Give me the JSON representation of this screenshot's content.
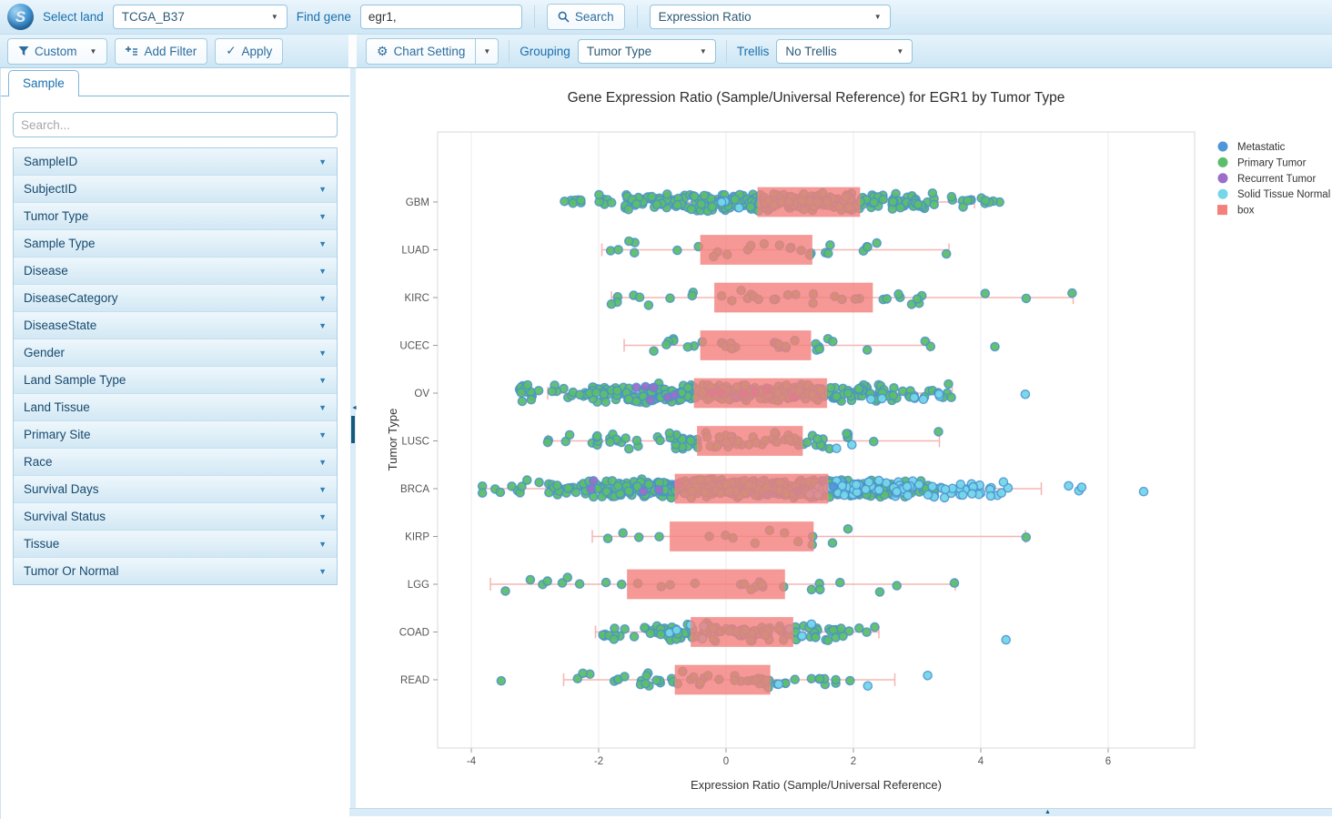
{
  "icons": {
    "dropdown_caret": "▼",
    "collapse_up": "▲",
    "collapse_left": "◄",
    "check": "✓",
    "gear": "⚙"
  },
  "brand": {
    "logo_letter": "S"
  },
  "toolbar": {
    "select_land_label": "Select land",
    "select_land_value": "TCGA_B37",
    "find_gene_label": "Find gene",
    "find_gene_value": "egr1,",
    "search_button": "Search",
    "view_mode_value": "Expression Ratio"
  },
  "filter_toolbar": {
    "custom": "Custom",
    "add_filter": "Add Filter",
    "apply": "Apply"
  },
  "chart_toolbar": {
    "chart_setting": "Chart Setting",
    "grouping_label": "Grouping",
    "grouping_value": "Tumor Type",
    "trellis_label": "Trellis",
    "trellis_value": "No Trellis"
  },
  "sidebar": {
    "tab_label": "Sample",
    "search_placeholder": "Search...",
    "fields": [
      "SampleID",
      "SubjectID",
      "Tumor Type",
      "Sample Type",
      "Disease",
      "DiseaseCategory",
      "DiseaseState",
      "Gender",
      "Land Sample Type",
      "Land Tissue",
      "Primary Site",
      "Race",
      "Survival Days",
      "Survival Status",
      "Tissue",
      "Tumor Or Normal"
    ]
  },
  "chart_data": {
    "type": "box",
    "title": "Gene Expression Ratio (Sample/Universal Reference) for EGR1 by Tumor Type",
    "xlabel": "Expression Ratio (Sample/Universal Reference)",
    "ylabel": "Tumor Type",
    "xlim": [
      -4.5,
      7.35
    ],
    "xticks": [
      -4,
      -2,
      0,
      2,
      4,
      6
    ],
    "grid": true,
    "legend_position": "top-right",
    "categories": [
      "GBM",
      "LUAD",
      "KIRC",
      "UCEC",
      "OV",
      "LUSC",
      "BRCA",
      "KIRP",
      "LGG",
      "COAD",
      "READ"
    ],
    "colors": {
      "metastatic": "#4f97d6",
      "primary": "#5cbe69",
      "recurrent": "#9a6fc9",
      "normal": "#74d6e9",
      "box": "#f4807c",
      "whisker": "#f5b5b2",
      "point_stroke": "#4b90d0"
    },
    "legend": [
      {
        "label": "Metastatic",
        "series": "metastatic",
        "shape": "circle"
      },
      {
        "label": "Primary Tumor",
        "series": "primary",
        "shape": "circle"
      },
      {
        "label": "Recurrent Tumor",
        "series": "recurrent",
        "shape": "circle"
      },
      {
        "label": "Solid Tissue Normal",
        "series": "normal",
        "shape": "circle"
      },
      {
        "label": "box",
        "series": "box",
        "shape": "square"
      }
    ],
    "rows": [
      {
        "label": "GBM",
        "whisker_lo": -1.45,
        "q1": 0.5,
        "q3": 2.1,
        "whisker_hi": 3.9,
        "clusters": [
          [
            "primary",
            -2.6,
            -1.6,
            14
          ],
          [
            "primary",
            -1.6,
            -0.6,
            55
          ],
          [
            "primary",
            -0.6,
            0.5,
            90
          ],
          [
            "primary",
            0.5,
            2.1,
            140
          ],
          [
            "primary",
            2.1,
            3.2,
            50
          ],
          [
            "primary",
            3.2,
            4.35,
            16
          ],
          [
            "normal",
            -0.7,
            0.3,
            3
          ]
        ]
      },
      {
        "label": "LUAD",
        "whisker_lo": -1.95,
        "q1": -0.4,
        "q3": 1.35,
        "whisker_hi": 3.5,
        "clusters": [
          [
            "primary",
            -2.0,
            -0.6,
            6
          ],
          [
            "primary",
            -0.6,
            1.35,
            13
          ],
          [
            "primary",
            1.35,
            2.6,
            7
          ],
          [
            "primary",
            3.4,
            3.5,
            1
          ]
        ]
      },
      {
        "label": "KIRC",
        "whisker_lo": -1.8,
        "q1": -0.18,
        "q3": 2.3,
        "whisker_hi": 5.45,
        "clusters": [
          [
            "primary",
            -1.8,
            -0.3,
            9
          ],
          [
            "primary",
            -0.3,
            2.3,
            17
          ],
          [
            "primary",
            2.3,
            3.35,
            8
          ],
          [
            "primary",
            4.0,
            4.15,
            1
          ],
          [
            "primary",
            4.6,
            4.75,
            1
          ],
          [
            "primary",
            5.35,
            5.45,
            1
          ]
        ]
      },
      {
        "label": "UCEC",
        "whisker_lo": -1.6,
        "q1": -0.4,
        "q3": 1.33,
        "whisker_hi": 3.2,
        "clusters": [
          [
            "primary",
            -1.6,
            -0.4,
            7
          ],
          [
            "primary",
            -0.4,
            1.33,
            15
          ],
          [
            "primary",
            1.33,
            2.35,
            7
          ],
          [
            "primary",
            3.1,
            3.25,
            2
          ],
          [
            "primary",
            4.2,
            4.3,
            1
          ]
        ]
      },
      {
        "label": "OV",
        "whisker_lo": -2.8,
        "q1": -0.5,
        "q3": 1.58,
        "whisker_hi": 3.55,
        "clusters": [
          [
            "primary",
            -3.3,
            -2.3,
            22
          ],
          [
            "primary",
            -2.3,
            -1.2,
            55
          ],
          [
            "primary",
            -1.2,
            -0.5,
            75
          ],
          [
            "primary",
            -0.5,
            1.58,
            175
          ],
          [
            "primary",
            1.58,
            2.7,
            50
          ],
          [
            "primary",
            2.7,
            3.55,
            14
          ],
          [
            "recurrent",
            -1.7,
            1.2,
            12
          ],
          [
            "normal",
            1.8,
            3.5,
            6
          ],
          [
            "normal",
            4.65,
            4.8,
            1
          ],
          [
            "metastatic",
            0.1,
            0.6,
            2
          ]
        ]
      },
      {
        "label": "LUSC",
        "whisker_lo": -2.8,
        "q1": -0.45,
        "q3": 1.2,
        "whisker_hi": 3.35,
        "clusters": [
          [
            "primary",
            -2.85,
            -2.1,
            5
          ],
          [
            "primary",
            -2.1,
            -1.1,
            14
          ],
          [
            "primary",
            -1.1,
            -0.45,
            22
          ],
          [
            "primary",
            -0.45,
            1.2,
            38
          ],
          [
            "primary",
            1.2,
            2.05,
            13
          ],
          [
            "primary",
            2.3,
            2.4,
            1
          ],
          [
            "primary",
            3.3,
            3.4,
            1
          ],
          [
            "normal",
            1.5,
            2.0,
            2
          ]
        ]
      },
      {
        "label": "BRCA",
        "whisker_lo": -3.85,
        "q1": -0.8,
        "q3": 1.6,
        "whisker_hi": 4.95,
        "clusters": [
          [
            "primary",
            -3.9,
            -2.8,
            10
          ],
          [
            "primary",
            -2.8,
            -1.8,
            40
          ],
          [
            "primary",
            -1.8,
            -0.8,
            105
          ],
          [
            "primary",
            -0.8,
            1.6,
            320
          ],
          [
            "primary",
            1.6,
            2.6,
            85
          ],
          [
            "primary",
            2.6,
            3.3,
            22
          ],
          [
            "normal",
            1.3,
            2.6,
            30
          ],
          [
            "normal",
            2.6,
            4.0,
            40
          ],
          [
            "normal",
            4.0,
            4.65,
            8
          ],
          [
            "normal",
            5.35,
            5.6,
            3
          ],
          [
            "normal",
            6.55,
            6.65,
            1
          ],
          [
            "recurrent",
            -2.3,
            -0.6,
            5
          ],
          [
            "metastatic",
            0.3,
            1.9,
            4
          ]
        ]
      },
      {
        "label": "KIRP",
        "whisker_lo": -2.1,
        "q1": -0.88,
        "q3": 1.37,
        "whisker_hi": 4.7,
        "clusters": [
          [
            "primary",
            -2.1,
            -1.0,
            4
          ],
          [
            "primary",
            -0.7,
            1.45,
            9
          ],
          [
            "primary",
            1.5,
            1.95,
            2
          ],
          [
            "primary",
            4.65,
            4.72,
            1
          ]
        ]
      },
      {
        "label": "LGG",
        "whisker_lo": -3.7,
        "q1": -1.55,
        "q3": 0.92,
        "whisker_hi": 3.6,
        "clusters": [
          [
            "primary",
            -3.75,
            -2.5,
            5
          ],
          [
            "primary",
            -2.5,
            -1.55,
            4
          ],
          [
            "primary",
            -1.55,
            0.92,
            12
          ],
          [
            "primary",
            0.92,
            2.1,
            4
          ],
          [
            "primary",
            2.2,
            2.7,
            2
          ],
          [
            "primary",
            3.55,
            3.62,
            1
          ]
        ]
      },
      {
        "label": "COAD",
        "whisker_lo": -2.05,
        "q1": -0.55,
        "q3": 1.05,
        "whisker_hi": 2.4,
        "clusters": [
          [
            "primary",
            -2.05,
            -1.25,
            12
          ],
          [
            "primary",
            -1.25,
            -0.55,
            28
          ],
          [
            "primary",
            -0.55,
            1.05,
            62
          ],
          [
            "primary",
            1.05,
            1.8,
            20
          ],
          [
            "primary",
            1.8,
            2.4,
            6
          ],
          [
            "normal",
            -1.05,
            -0.35,
            5
          ],
          [
            "normal",
            0.9,
            1.65,
            4
          ],
          [
            "normal",
            4.3,
            4.45,
            1
          ]
        ]
      },
      {
        "label": "READ",
        "whisker_lo": -2.55,
        "q1": -0.8,
        "q3": 0.69,
        "whisker_hi": 2.65,
        "clusters": [
          [
            "primary",
            -3.6,
            -3.52,
            1
          ],
          [
            "primary",
            -2.55,
            -1.6,
            6
          ],
          [
            "primary",
            -1.6,
            -0.8,
            12
          ],
          [
            "primary",
            -0.8,
            0.69,
            22
          ],
          [
            "primary",
            0.69,
            1.6,
            9
          ],
          [
            "primary",
            1.6,
            2.25,
            3
          ],
          [
            "normal",
            0.8,
            0.95,
            1
          ],
          [
            "normal",
            2.15,
            2.25,
            1
          ],
          [
            "normal",
            3.1,
            3.2,
            1
          ]
        ]
      }
    ]
  }
}
